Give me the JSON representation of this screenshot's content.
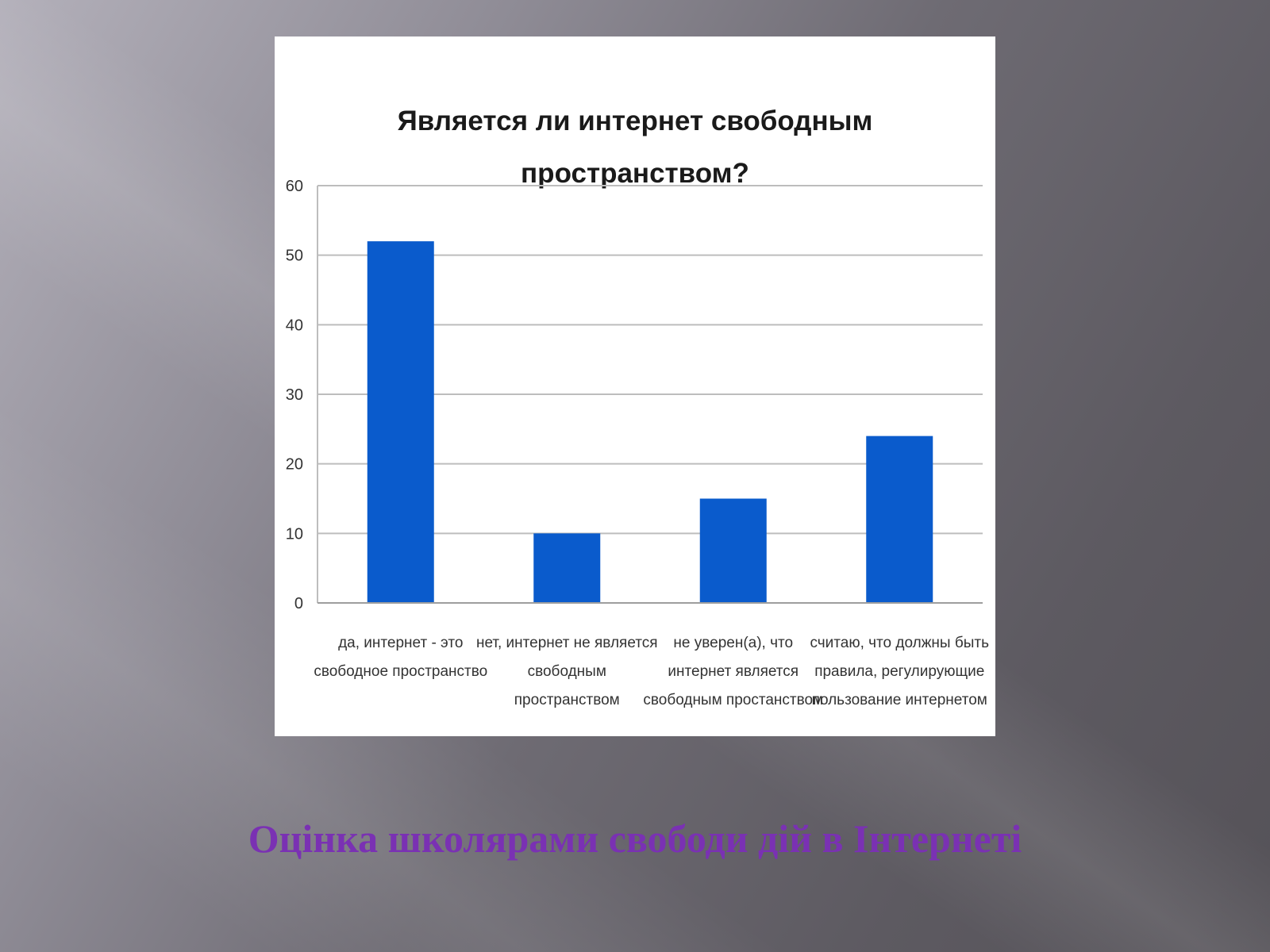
{
  "slide": {
    "caption": "Оцінка школярами свободи дій в Інтернеті",
    "caption_color": "#7a31b3"
  },
  "chart_data": {
    "type": "bar",
    "title": "Является ли интернет свободным\nпространством?",
    "categories": [
      [
        "да, интернет - это",
        "свободное пространство"
      ],
      [
        "нет, интернет не является",
        "свободным",
        "пространством"
      ],
      [
        "не уверен(а), что",
        "интернет является",
        "свободным простанством"
      ],
      [
        "считаю, что должны быть",
        "правила, регулирующие",
        "пользование интернетом"
      ]
    ],
    "values": [
      52,
      10,
      15,
      24
    ],
    "ylim": [
      0,
      60
    ],
    "yticks": [
      0,
      10,
      20,
      30,
      40,
      50,
      60
    ],
    "grid": true,
    "legend": "none",
    "bar_color": "#0a5bcc",
    "grid_color": "#bdbdbd"
  }
}
